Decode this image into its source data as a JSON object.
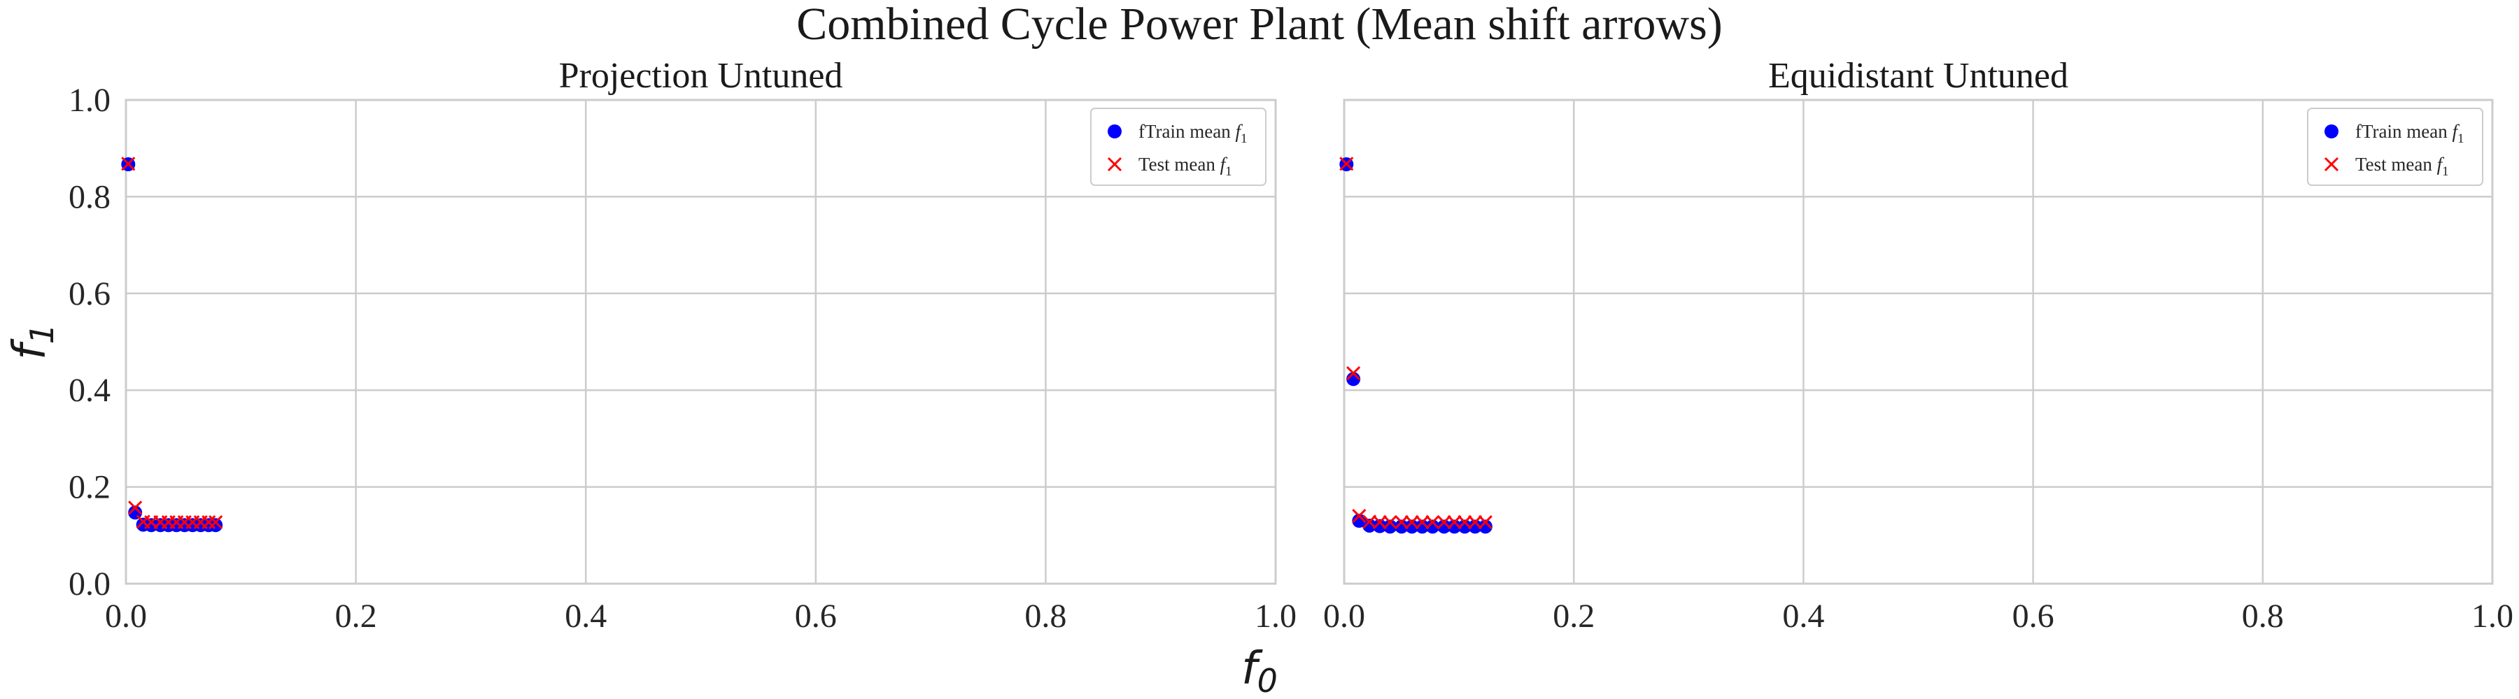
{
  "figure": {
    "title": "Combined Cycle Power Plant (Mean shift arrows)",
    "xlabel_main": "f",
    "xlabel_sub": "0",
    "ylabel_main": "f",
    "ylabel_sub": "1"
  },
  "colors": {
    "train": "#0000ff",
    "test": "#ff0000",
    "grid": "#cccccc",
    "frame": "#cccccc",
    "text": "#262626"
  },
  "chart_data": [
    {
      "type": "scatter",
      "title": "Projection Untuned",
      "xlim": [
        0,
        1
      ],
      "ylim": [
        0,
        1
      ],
      "xticks": [
        "0.0",
        "0.2",
        "0.4",
        "0.6",
        "0.8",
        "1.0"
      ],
      "yticks": [
        "0.0",
        "0.2",
        "0.4",
        "0.6",
        "0.8",
        "1.0"
      ],
      "grid": true,
      "legend_position": "top-right",
      "series": [
        {
          "name": "fTrain mean f1",
          "label_main": "fTrain mean f",
          "label_sub": "1",
          "marker": "circle",
          "color": "#0000ff",
          "points": [
            [
              0.002,
              0.867
            ],
            [
              0.008,
              0.147
            ],
            [
              0.015,
              0.122
            ],
            [
              0.022,
              0.121
            ],
            [
              0.03,
              0.121
            ],
            [
              0.037,
              0.121
            ],
            [
              0.044,
              0.121
            ],
            [
              0.051,
              0.121
            ],
            [
              0.058,
              0.121
            ],
            [
              0.065,
              0.121
            ],
            [
              0.072,
              0.121
            ],
            [
              0.078,
              0.121
            ]
          ]
        },
        {
          "name": "Test mean f1",
          "label_main": "Test mean f",
          "label_sub": "1",
          "marker": "x",
          "color": "#ff0000",
          "points": [
            [
              0.002,
              0.868
            ],
            [
              0.008,
              0.157
            ],
            [
              0.015,
              0.128
            ],
            [
              0.022,
              0.127
            ],
            [
              0.03,
              0.127
            ],
            [
              0.037,
              0.127
            ],
            [
              0.044,
              0.127
            ],
            [
              0.051,
              0.127
            ],
            [
              0.058,
              0.127
            ],
            [
              0.065,
              0.127
            ],
            [
              0.072,
              0.127
            ],
            [
              0.078,
              0.127
            ]
          ]
        }
      ]
    },
    {
      "type": "scatter",
      "title": "Equidistant Untuned",
      "xlim": [
        0,
        1
      ],
      "ylim": [
        0,
        1
      ],
      "xticks": [
        "0.0",
        "0.2",
        "0.4",
        "0.6",
        "0.8",
        "1.0"
      ],
      "yticks": [],
      "grid": true,
      "legend_position": "top-right",
      "series": [
        {
          "name": "fTrain mean f1",
          "label_main": "fTrain mean f",
          "label_sub": "1",
          "marker": "circle",
          "color": "#0000ff",
          "points": [
            [
              0.002,
              0.867
            ],
            [
              0.008,
              0.423
            ],
            [
              0.013,
              0.13
            ],
            [
              0.022,
              0.12
            ],
            [
              0.031,
              0.119
            ],
            [
              0.04,
              0.118
            ],
            [
              0.05,
              0.118
            ],
            [
              0.059,
              0.118
            ],
            [
              0.068,
              0.118
            ],
            [
              0.077,
              0.118
            ],
            [
              0.087,
              0.118
            ],
            [
              0.096,
              0.118
            ],
            [
              0.105,
              0.118
            ],
            [
              0.114,
              0.118
            ],
            [
              0.123,
              0.118
            ]
          ]
        },
        {
          "name": "Test mean f1",
          "label_main": "Test mean f",
          "label_sub": "1",
          "marker": "x",
          "color": "#ff0000",
          "points": [
            [
              0.002,
              0.868
            ],
            [
              0.008,
              0.435
            ],
            [
              0.013,
              0.14
            ],
            [
              0.022,
              0.128
            ],
            [
              0.031,
              0.127
            ],
            [
              0.04,
              0.127
            ],
            [
              0.05,
              0.127
            ],
            [
              0.059,
              0.127
            ],
            [
              0.068,
              0.127
            ],
            [
              0.077,
              0.127
            ],
            [
              0.087,
              0.127
            ],
            [
              0.096,
              0.127
            ],
            [
              0.105,
              0.127
            ],
            [
              0.114,
              0.127
            ],
            [
              0.123,
              0.127
            ]
          ]
        }
      ]
    }
  ]
}
